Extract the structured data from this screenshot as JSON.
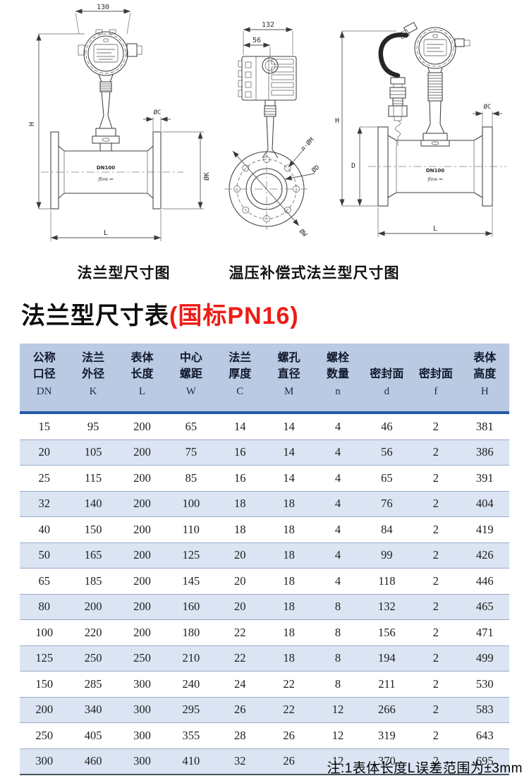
{
  "title": {
    "main": "法兰型尺寸表",
    "highlight": "(国标PN16)"
  },
  "captions": {
    "left": "法兰型尺寸图",
    "right": "温压补偿式法兰型尺寸图"
  },
  "drawings": {
    "flange": {
      "dim_top_width": "130",
      "dim_height": "H",
      "dim_flange_thickness": "ØC",
      "dim_flange_od": "ØK",
      "dim_length": "L",
      "body_label": "DN100",
      "flow_label": "flow ⇒"
    },
    "front": {
      "dim_housing_width": "132",
      "dim_offset": "56",
      "label_bolt_holes": "n-ØM",
      "label_bore": "ØD",
      "label_od": "ØW"
    },
    "temp_comp": {
      "dim_height": "H",
      "dim_flange_od": "D",
      "dim_flange_thickness": "ØC",
      "dim_length": "L",
      "body_label": "DN100",
      "flow_label": "flow ⇒"
    }
  },
  "table": {
    "columns": [
      {
        "cn1": "公称",
        "cn2": "口径",
        "sym": "DN"
      },
      {
        "cn1": "法兰",
        "cn2": "外径",
        "sym": "K"
      },
      {
        "cn1": "表体",
        "cn2": "长度",
        "sym": "L"
      },
      {
        "cn1": "中心",
        "cn2": "螺距",
        "sym": "W"
      },
      {
        "cn1": "法兰",
        "cn2": "厚度",
        "sym": "C"
      },
      {
        "cn1": "螺孔",
        "cn2": "直径",
        "sym": "M"
      },
      {
        "cn1": "螺栓",
        "cn2": "数量",
        "sym": "n"
      },
      {
        "cn1": "",
        "cn2": "密封面",
        "sym": "d"
      },
      {
        "cn1": "",
        "cn2": "密封面",
        "sym": "f"
      },
      {
        "cn1": "表体",
        "cn2": "高度",
        "sym": "H"
      }
    ],
    "rows": [
      [
        "15",
        "95",
        "200",
        "65",
        "14",
        "14",
        "4",
        "46",
        "2",
        "381"
      ],
      [
        "20",
        "105",
        "200",
        "75",
        "16",
        "14",
        "4",
        "56",
        "2",
        "386"
      ],
      [
        "25",
        "115",
        "200",
        "85",
        "16",
        "14",
        "4",
        "65",
        "2",
        "391"
      ],
      [
        "32",
        "140",
        "200",
        "100",
        "18",
        "18",
        "4",
        "76",
        "2",
        "404"
      ],
      [
        "40",
        "150",
        "200",
        "110",
        "18",
        "18",
        "4",
        "84",
        "2",
        "419"
      ],
      [
        "50",
        "165",
        "200",
        "125",
        "20",
        "18",
        "4",
        "99",
        "2",
        "426"
      ],
      [
        "65",
        "185",
        "200",
        "145",
        "20",
        "18",
        "4",
        "118",
        "2",
        "446"
      ],
      [
        "80",
        "200",
        "200",
        "160",
        "20",
        "18",
        "8",
        "132",
        "2",
        "465"
      ],
      [
        "100",
        "220",
        "200",
        "180",
        "22",
        "18",
        "8",
        "156",
        "2",
        "471"
      ],
      [
        "125",
        "250",
        "250",
        "210",
        "22",
        "18",
        "8",
        "194",
        "2",
        "499"
      ],
      [
        "150",
        "285",
        "300",
        "240",
        "24",
        "22",
        "8",
        "211",
        "2",
        "530"
      ],
      [
        "200",
        "340",
        "300",
        "295",
        "26",
        "22",
        "12",
        "266",
        "2",
        "583"
      ],
      [
        "250",
        "405",
        "300",
        "355",
        "28",
        "26",
        "12",
        "319",
        "2",
        "643"
      ],
      [
        "300",
        "460",
        "300",
        "410",
        "32",
        "26",
        "12",
        "370",
        "2",
        "695"
      ]
    ]
  },
  "note": "注:1表体长度L误差范围为±3mm",
  "colors": {
    "accent_red": "#ed1c16",
    "header_bg": "#b9cae2",
    "header_rule": "#2558a7",
    "row_alt_bg": "#dbe4f2",
    "row_rule": "#9aabc8",
    "table_end_rule": "#4d545c"
  }
}
